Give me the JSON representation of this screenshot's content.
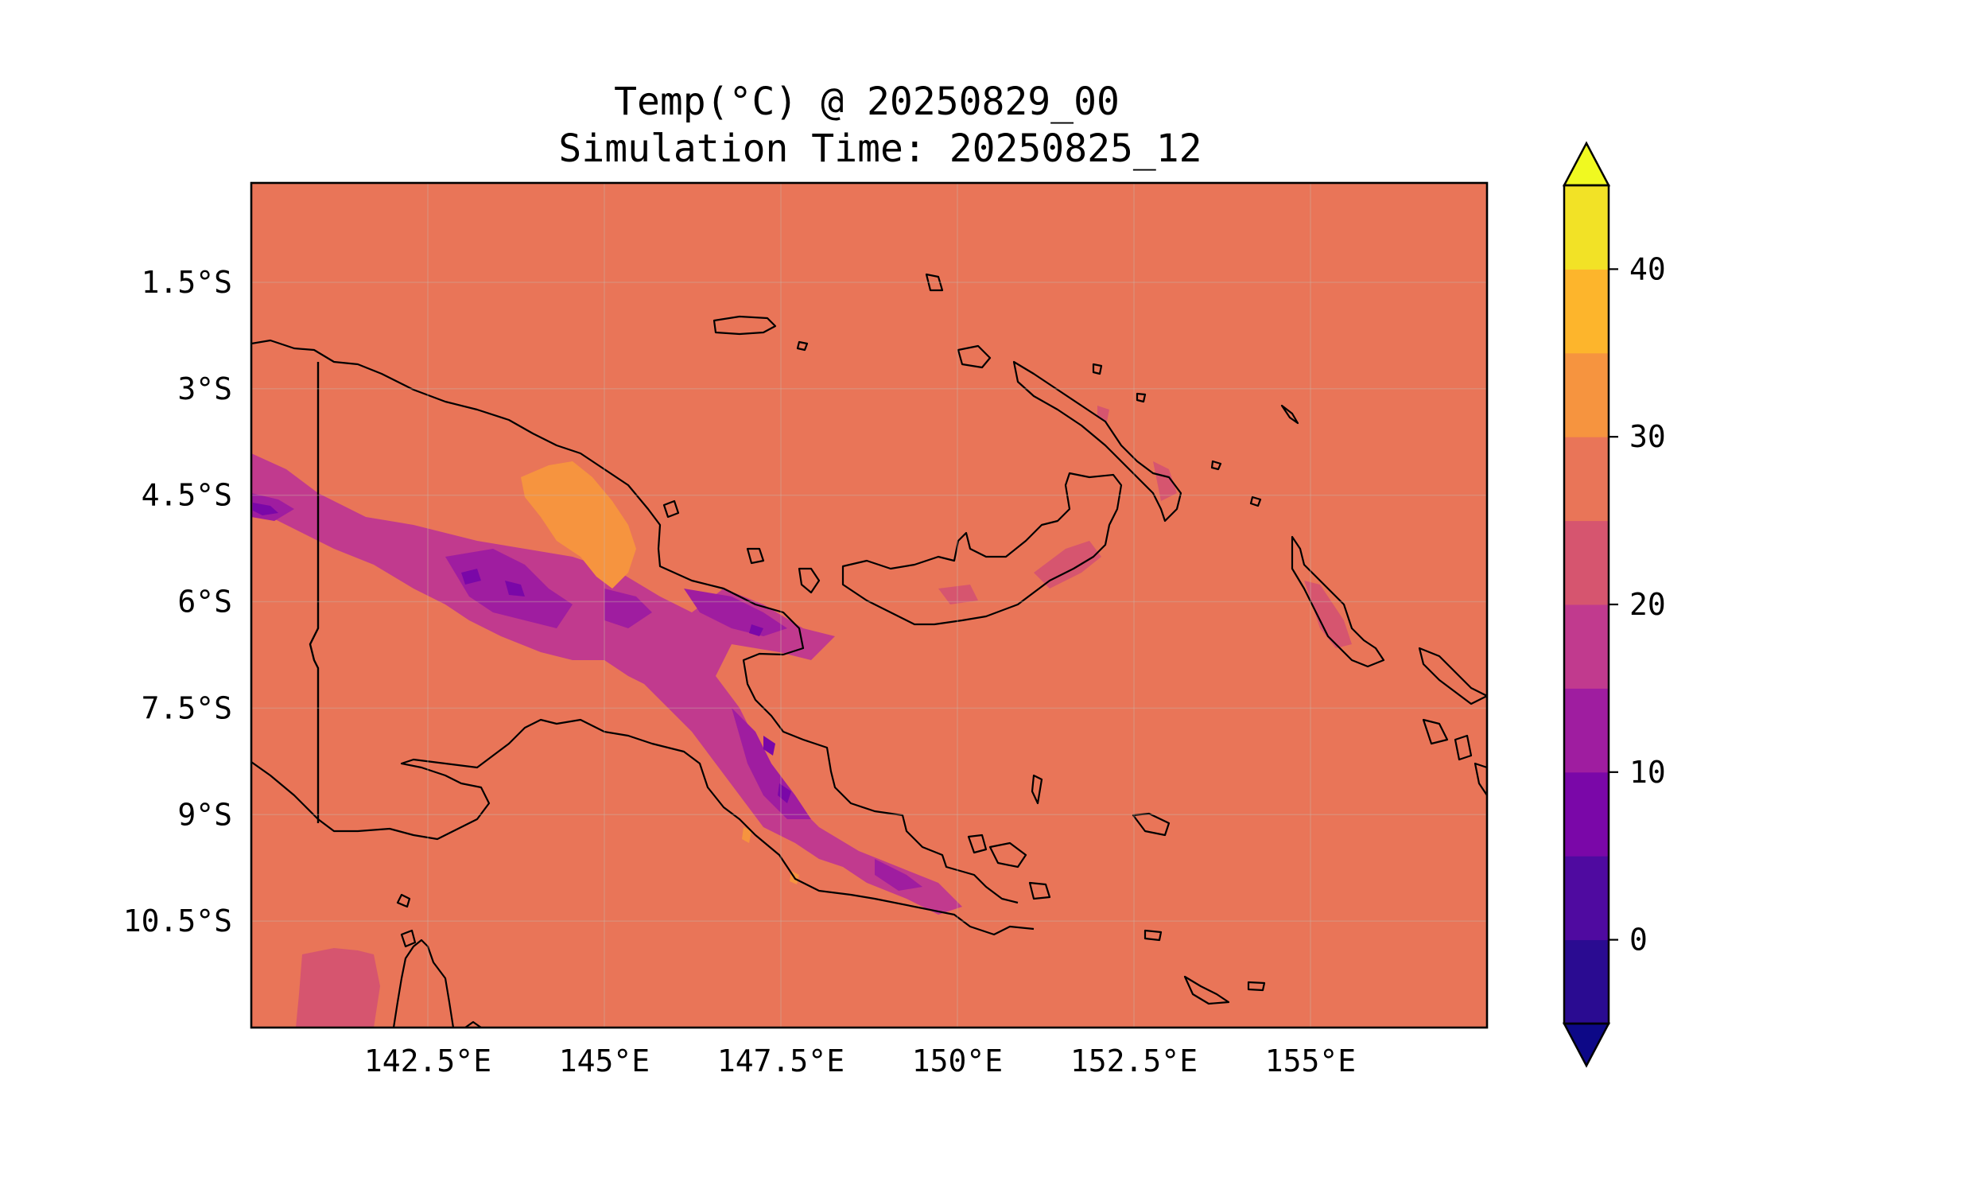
{
  "title": {
    "line1": "Temp(°C) @ 20250829_00",
    "line2": "Simulation Time: 20250825_12"
  },
  "map": {
    "lon_range": [
      140.0,
      157.5
    ],
    "lat_range": [
      -12.0,
      -0.1
    ],
    "x_ticks": [
      {
        "value": 142.5,
        "label": "142.5°E"
      },
      {
        "value": 145.0,
        "label": "145°E"
      },
      {
        "value": 147.5,
        "label": "147.5°E"
      },
      {
        "value": 150.0,
        "label": "150°E"
      },
      {
        "value": 152.5,
        "label": "152.5°E"
      },
      {
        "value": 155.0,
        "label": "155°E"
      }
    ],
    "y_ticks": [
      {
        "value": -1.5,
        "label": "1.5°S"
      },
      {
        "value": -3.0,
        "label": "3°S"
      },
      {
        "value": -4.5,
        "label": "4.5°S"
      },
      {
        "value": -6.0,
        "label": "6°S"
      },
      {
        "value": -7.5,
        "label": "7.5°S"
      },
      {
        "value": -9.0,
        "label": "9°S"
      },
      {
        "value": -10.5,
        "label": "10.5°S"
      }
    ],
    "background_level_color": "#e97558"
  },
  "colorbar": {
    "colormap": "plasma",
    "levels": [
      -5,
      0,
      5,
      10,
      15,
      20,
      25,
      30,
      35,
      40,
      45
    ],
    "colors": [
      "#2a0b91",
      "#4f0aa0",
      "#7a07a8",
      "#9f1da0",
      "#c13a8e",
      "#d6556f",
      "#e97558",
      "#f6943f",
      "#fdb52c",
      "#f2e226"
    ],
    "under_color": "#0d0887",
    "over_color": "#f0f921",
    "ticks": [
      {
        "value": 0,
        "label": "0"
      },
      {
        "value": 10,
        "label": "10"
      },
      {
        "value": 20,
        "label": "20"
      },
      {
        "value": 30,
        "label": "30"
      },
      {
        "value": 40,
        "label": "40"
      }
    ]
  }
}
